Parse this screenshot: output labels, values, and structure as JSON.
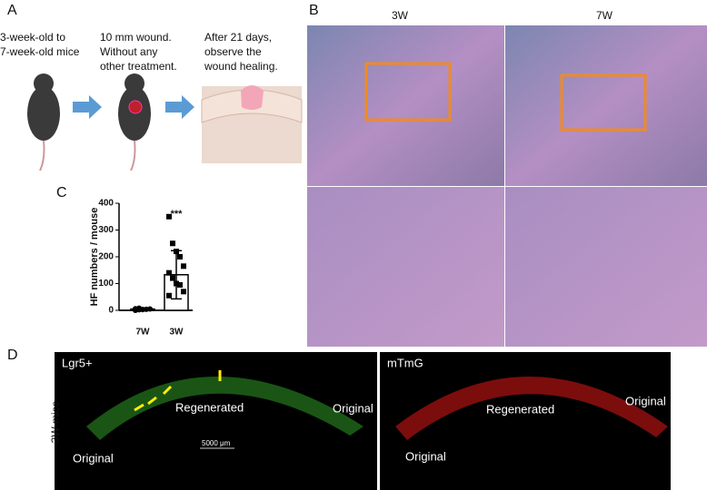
{
  "panels": {
    "a": {
      "letter": "A",
      "steps": [
        {
          "lines": [
            "3-week-old to",
            "7-week-old mice"
          ]
        },
        {
          "lines": [
            "10 mm wound.",
            "Without any",
            "other treatment."
          ]
        },
        {
          "lines": [
            "After 21 days,",
            "observe the",
            "wound healing."
          ]
        }
      ]
    },
    "b": {
      "letter": "B",
      "columns": [
        "3W",
        "7W"
      ]
    },
    "c": {
      "letter": "C"
    },
    "d": {
      "letter": "D",
      "row_label": "3W mice",
      "left": {
        "stain": "Lgr5+",
        "regenerated": "Regenerated",
        "original_left": "Original",
        "original_right": "Original",
        "scale_bar": "5000 μm"
      },
      "right": {
        "stain": "mTmG",
        "regenerated": "Regenerated",
        "original_left": "Original",
        "original_right": "Original"
      }
    }
  },
  "chart_data": {
    "type": "bar",
    "ylabel": "HF numbers / mouse",
    "categories": [
      "7W",
      "3W"
    ],
    "values": [
      5,
      133
    ],
    "errors": [
      3,
      90
    ],
    "color": "#ffffff",
    "points": [
      [
        0,
        2,
        3,
        4,
        5,
        6,
        8,
        3
      ],
      [
        350,
        250,
        220,
        200,
        165,
        140,
        120,
        100,
        95,
        70,
        55
      ]
    ],
    "annotation": "***",
    "ylim": [
      0,
      400
    ],
    "yticks": [
      0,
      100,
      200,
      300,
      400
    ]
  }
}
